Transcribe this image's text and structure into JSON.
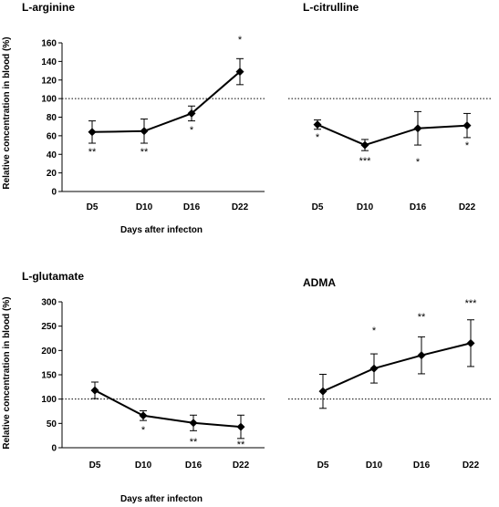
{
  "chart_data": [
    {
      "type": "line",
      "title": "L-arginine",
      "categories": [
        "D5",
        "D10",
        "D16",
        "D22"
      ],
      "values": [
        64,
        65,
        84,
        129
      ],
      "errors": [
        12,
        13,
        8,
        14
      ],
      "significance": [
        "**",
        "**",
        "*",
        "*"
      ],
      "ylim": [
        0,
        160
      ],
      "yticks": [
        0,
        20,
        40,
        60,
        80,
        100,
        120,
        140,
        160
      ],
      "reference_line": 100,
      "ylabel": "Relative concentration in blood (%)",
      "xlabel": "Days after infecton"
    },
    {
      "type": "line",
      "title": "L-citrulline",
      "categories": [
        "D5",
        "D10",
        "D16",
        "D22"
      ],
      "values": [
        72,
        50,
        68,
        71
      ],
      "errors": [
        5,
        6,
        18,
        13
      ],
      "significance": [
        "*",
        "***",
        "*",
        "*"
      ],
      "ylim": [
        0,
        160
      ],
      "reference_line": 100
    },
    {
      "type": "line",
      "title": "L-glutamate",
      "categories": [
        "D5",
        "D10",
        "D16",
        "D22"
      ],
      "values": [
        118,
        66,
        51,
        43
      ],
      "errors": [
        17,
        10,
        16,
        24
      ],
      "significance": [
        "",
        "*",
        "**",
        "**"
      ],
      "ylim": [
        0,
        300
      ],
      "yticks": [
        0,
        50,
        100,
        150,
        200,
        250,
        300
      ],
      "reference_line": 100,
      "ylabel": "Relative concentration in blood (%)",
      "xlabel": "Days after infecton"
    },
    {
      "type": "line",
      "title": "ADMA",
      "categories": [
        "D5",
        "D10",
        "D16",
        "D22"
      ],
      "values": [
        116,
        163,
        190,
        215
      ],
      "errors": [
        35,
        30,
        38,
        48
      ],
      "significance": [
        "",
        "*",
        "**",
        "***"
      ],
      "ylim": [
        0,
        300
      ],
      "reference_line": 100
    }
  ],
  "colors": {
    "line": "#000000",
    "reference": "#000000",
    "background": "#ffffff"
  }
}
